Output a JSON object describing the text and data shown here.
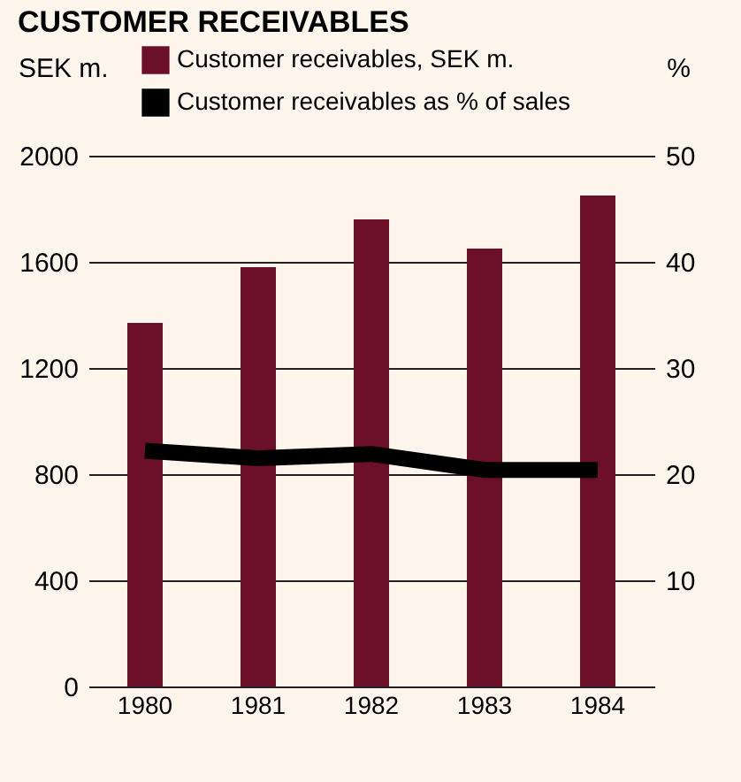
{
  "chart_data": {
    "type": "bar",
    "title": "CUSTOMER RECEIVABLES",
    "ylabel": "SEK m.",
    "y2label": "%",
    "categories": [
      "1980",
      "1981",
      "1982",
      "1983",
      "1984"
    ],
    "series": [
      {
        "name": "Customer receivables, SEK m.",
        "color": "#6b1028",
        "values": [
          1370,
          1580,
          1760,
          1650,
          1850
        ]
      },
      {
        "name": "Customer receivables as % of sales",
        "color": "#000000",
        "type": "line",
        "axis": "y2",
        "values": [
          22.2,
          21.5,
          21.9,
          20.4,
          20.4
        ]
      }
    ],
    "ylim": [
      0,
      2000
    ],
    "yticks": [
      0,
      400,
      800,
      1200,
      1600,
      2000
    ],
    "y2lim": [
      0,
      50
    ],
    "y2ticks": [
      10,
      20,
      30,
      40,
      50
    ],
    "grid": "y",
    "legend": "top"
  }
}
